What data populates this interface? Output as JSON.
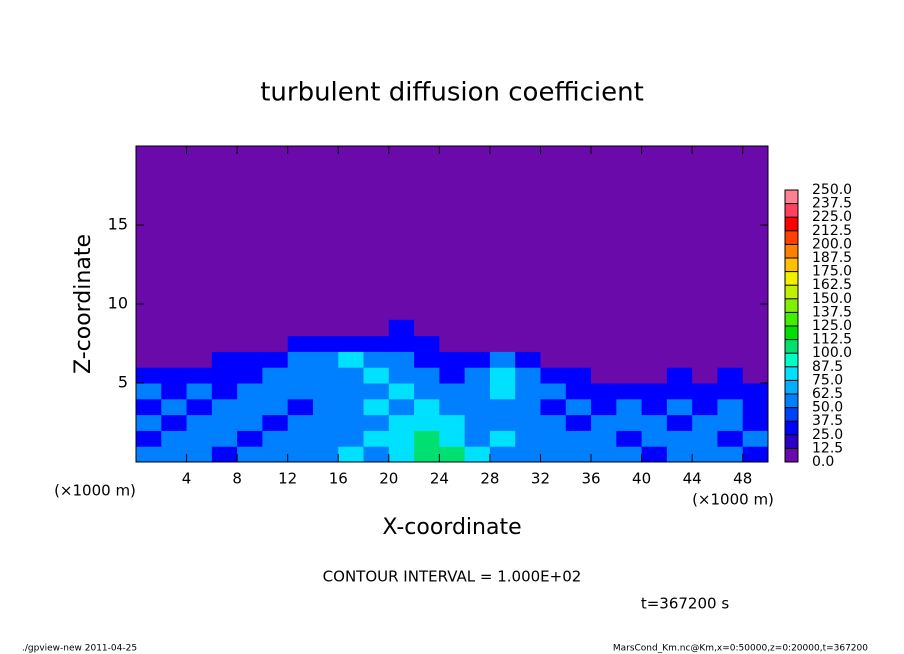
{
  "chart_data": {
    "type": "contour",
    "title": "turbulent diffusion coefficient",
    "xlabel": "X-coordinate",
    "ylabel": "Z-coordinate",
    "x_unit_label": "(×1000 m)",
    "y_unit_label": "(×1000 m)",
    "xlim": [
      0,
      50
    ],
    "ylim": [
      0,
      20
    ],
    "xticks": [
      4,
      8,
      12,
      16,
      20,
      24,
      28,
      32,
      36,
      40,
      44,
      48
    ],
    "yticks": [
      5,
      10,
      15
    ],
    "x": [
      1,
      3,
      5,
      7,
      9,
      11,
      13,
      15,
      17,
      19,
      21,
      23,
      25,
      27,
      29,
      31,
      33,
      35,
      37,
      39,
      41,
      43,
      45,
      47,
      49
    ],
    "z": [
      0.5,
      1.5,
      2.5,
      3.5,
      4.5,
      5.5,
      6.5,
      7.5,
      8.5
    ],
    "values": [
      [
        50,
        62,
        50,
        37,
        50,
        62,
        50,
        62,
        75,
        62,
        87,
        112,
        100,
        75,
        62,
        50,
        62,
        50,
        62,
        50,
        37,
        50,
        62,
        50,
        37
      ],
      [
        37,
        50,
        62,
        50,
        37,
        50,
        62,
        50,
        62,
        75,
        87,
        100,
        87,
        62,
        75,
        62,
        50,
        62,
        50,
        37,
        50,
        62,
        50,
        37,
        50
      ],
      [
        50,
        37,
        50,
        62,
        50,
        37,
        50,
        62,
        50,
        62,
        75,
        87,
        75,
        62,
        50,
        62,
        50,
        37,
        50,
        62,
        50,
        37,
        50,
        62,
        37
      ],
      [
        37,
        50,
        37,
        50,
        62,
        50,
        37,
        50,
        62,
        75,
        62,
        75,
        62,
        50,
        62,
        50,
        37,
        50,
        37,
        50,
        37,
        50,
        37,
        50,
        37
      ],
      [
        50,
        37,
        50,
        37,
        50,
        62,
        50,
        62,
        50,
        62,
        75,
        62,
        50,
        62,
        75,
        62,
        50,
        37,
        25,
        37,
        25,
        37,
        25,
        37,
        25
      ],
      [
        25,
        37,
        25,
        37,
        37,
        50,
        62,
        50,
        62,
        75,
        62,
        50,
        37,
        62,
        75,
        50,
        37,
        25,
        12,
        12,
        12,
        25,
        12,
        25,
        12
      ],
      [
        12,
        12,
        12,
        25,
        25,
        37,
        50,
        62,
        75,
        62,
        50,
        37,
        25,
        37,
        50,
        25,
        12,
        0,
        0,
        0,
        0,
        0,
        0,
        0,
        0
      ],
      [
        0,
        0,
        0,
        0,
        0,
        12,
        25,
        37,
        25,
        25,
        37,
        25,
        12,
        12,
        0,
        0,
        0,
        0,
        0,
        0,
        0,
        0,
        0,
        0,
        0
      ],
      [
        0,
        0,
        0,
        0,
        0,
        0,
        0,
        0,
        0,
        12,
        25,
        0,
        0,
        0,
        0,
        0,
        0,
        0,
        0,
        0,
        0,
        0,
        0,
        0,
        0
      ]
    ],
    "levels": [
      {
        "value": 0,
        "label": "0.0"
      },
      12.5,
      {
        "value": 25,
        "label": "25.0"
      },
      37.5,
      {
        "value": 50,
        "label": "50.0"
      },
      62.5,
      {
        "value": 75,
        "label": "75.0"
      },
      87.5,
      {
        "value": 100,
        "label": "100.0"
      },
      112.5,
      {
        "value": 125,
        "label": "125.0"
      },
      137.5,
      {
        "value": 150,
        "label": "150.0"
      },
      162.5,
      {
        "value": 175,
        "label": "175.0"
      },
      187.5,
      {
        "value": 200,
        "label": "200.0"
      },
      212.5,
      {
        "value": 225,
        "label": "225.0"
      },
      237.5,
      {
        "value": 250,
        "label": "250.0"
      }
    ],
    "colors": [
      "#6a0aaa",
      "#2a00c8",
      "#0000ff",
      "#0040ff",
      "#0080ff",
      "#00b0ff",
      "#00e0ff",
      "#00ffc8",
      "#00e070",
      "#00e000",
      "#40f000",
      "#80f000",
      "#c0f000",
      "#f0f000",
      "#ffc000",
      "#ff8000",
      "#ff4000",
      "#ff0000",
      "#ff4060",
      "#ff8090"
    ],
    "contour_interval_label": "CONTOUR INTERVAL = 1.000E+02",
    "time_label": "t=367200 s",
    "footer_left": "./gpview-new   2011-04-25",
    "footer_right": "MarsCond_Km.nc@Km,x=0:50000,z=0:20000,t=367200"
  }
}
